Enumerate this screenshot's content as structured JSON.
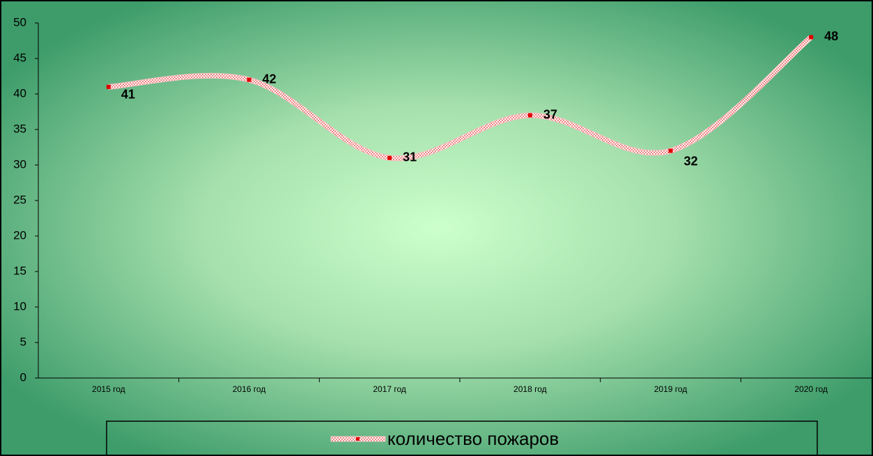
{
  "chart_data": {
    "type": "line",
    "smooth": true,
    "grid": false,
    "categories": [
      "2015 год",
      "2016 год",
      "2017 год",
      "2018 год",
      "2019 год",
      "2020 год"
    ],
    "series": [
      {
        "name": "количество пожаров",
        "color": "#e00000",
        "values": [
          41,
          42,
          31,
          37,
          32,
          48
        ]
      }
    ],
    "ylim": [
      0,
      50
    ],
    "yticks": [
      0,
      5,
      10,
      15,
      20,
      25,
      30,
      35,
      40,
      45,
      50
    ],
    "legend": "bottom"
  }
}
